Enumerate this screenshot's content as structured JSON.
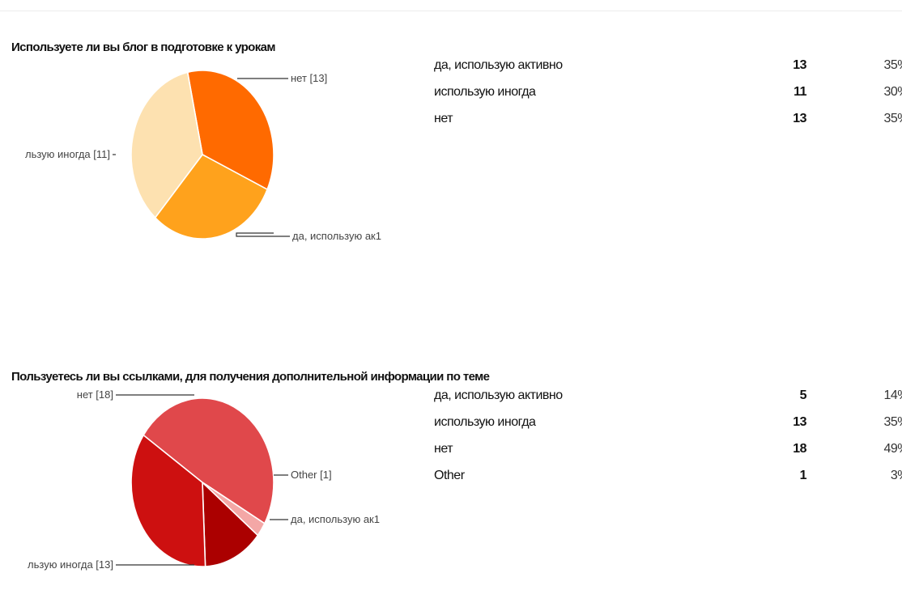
{
  "chart_data": [
    {
      "type": "pie",
      "title": "Используете ли вы блог в подготовке к урокам",
      "slices": [
        {
          "label": "да, использую активно",
          "count": 13,
          "percent": "35%",
          "color": "#ff6a00",
          "callout": "да, использую ак1"
        },
        {
          "label": "использую иногда",
          "count": 11,
          "percent": "30%",
          "color": "#ffa21c",
          "callout": "льзую иногда [11]"
        },
        {
          "label": "нет",
          "count": 13,
          "percent": "35%",
          "color": "#fde1b0",
          "callout": "нет [13]"
        }
      ]
    },
    {
      "type": "pie",
      "title": "Пользуетесь ли вы ссылками, для получения дополнительной информации по теме",
      "slices": [
        {
          "label": "да, использую активно",
          "count": 5,
          "percent": "14%",
          "color": "#ab0000",
          "callout": "да, использую ак1"
        },
        {
          "label": "использую иногда",
          "count": 13,
          "percent": "35%",
          "color": "#cd1010",
          "callout": "льзую иногда [13]"
        },
        {
          "label": "нет",
          "count": 18,
          "percent": "49%",
          "color": "#e0484b",
          "callout": "нет [18]"
        },
        {
          "label": "Other",
          "count": 1,
          "percent": "3%",
          "color": "#f4a7a6",
          "callout": "Other [1]"
        }
      ]
    }
  ]
}
